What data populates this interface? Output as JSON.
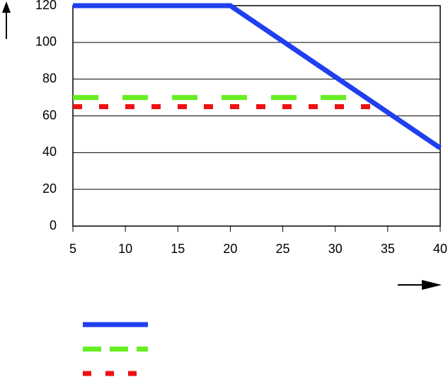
{
  "chart_data": {
    "type": "line",
    "xlim": [
      5,
      40
    ],
    "xticks": [
      5,
      10,
      15,
      20,
      25,
      30,
      35,
      40
    ],
    "ylim": [
      0,
      120
    ],
    "yticks": [
      0,
      20,
      40,
      60,
      80,
      100,
      120
    ],
    "grid": true,
    "series": [
      {
        "color": "#1f3ff0",
        "style": "solid",
        "x": [
          5,
          20,
          40
        ],
        "values": [
          120,
          120,
          42.5
        ]
      },
      {
        "color": "#66ee22",
        "style": "dashed",
        "x": [
          5,
          31.5
        ],
        "values": [
          70,
          70
        ]
      },
      {
        "color": "#ee1111",
        "style": "dotted",
        "x": [
          5,
          34.5
        ],
        "values": [
          65,
          65
        ]
      }
    ]
  }
}
